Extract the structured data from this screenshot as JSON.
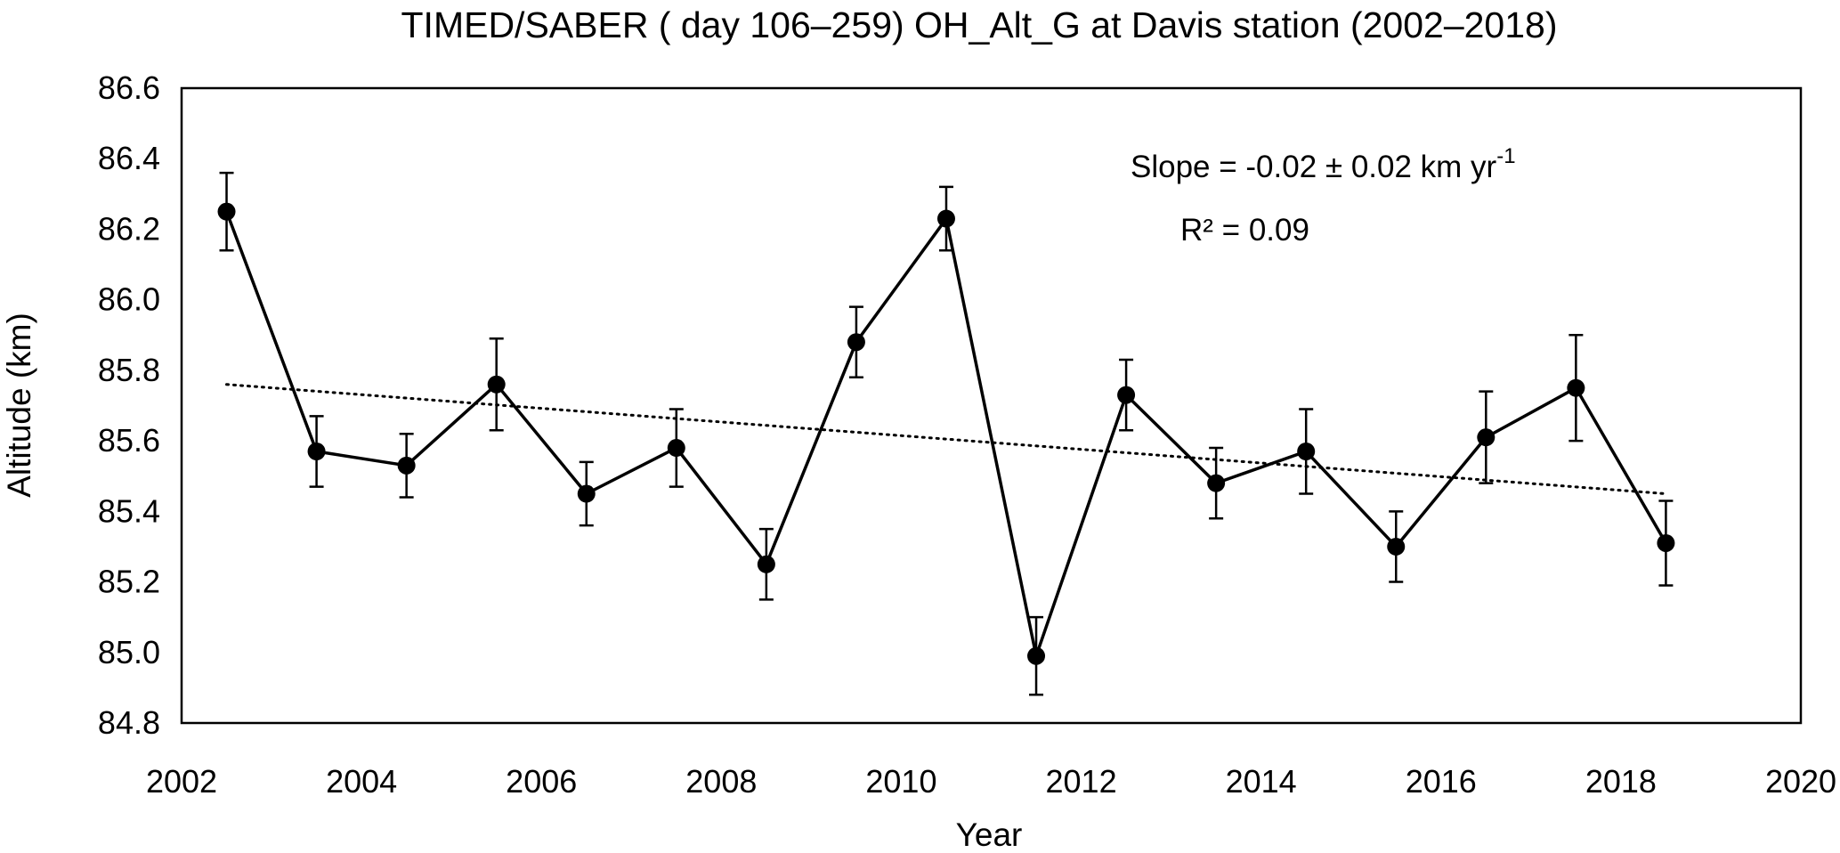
{
  "chart_data": {
    "type": "line",
    "title": "TIMED/SABER ( day 106–259) OH_Alt_G at Davis station  (2002–2018)",
    "xlabel": "Year",
    "ylabel": "Altitude (km)",
    "xlim": [
      2002,
      2020
    ],
    "ylim": [
      84.8,
      86.6
    ],
    "x_ticks": [
      2002,
      2004,
      2006,
      2008,
      2010,
      2012,
      2014,
      2016,
      2018,
      2020
    ],
    "x_tick_labels": [
      "2002",
      "2004",
      "2006",
      "2008",
      "2010",
      "2012",
      "2014",
      "2016",
      "2018",
      "2020"
    ],
    "y_ticks": [
      84.8,
      85.0,
      85.2,
      85.4,
      85.6,
      85.8,
      86.0,
      86.2,
      86.4,
      86.6
    ],
    "y_tick_labels": [
      "84.8",
      "85.0",
      "85.2",
      "85.4",
      "85.6",
      "85.8",
      "86.0",
      "86.2",
      "86.4",
      "86.6"
    ],
    "grid": false,
    "legend": "none",
    "series": [
      {
        "x": [
          2002.5,
          2003.5,
          2004.5,
          2005.5,
          2006.5,
          2007.5,
          2008.5,
          2009.5,
          2010.5,
          2011.5,
          2012.5,
          2013.5,
          2014.5,
          2015.5,
          2016.5,
          2017.5,
          2018.5
        ],
        "values": [
          86.25,
          85.57,
          85.53,
          85.76,
          85.45,
          85.58,
          85.25,
          85.88,
          86.23,
          84.99,
          85.73,
          85.48,
          85.57,
          85.3,
          85.61,
          85.75,
          85.31
        ],
        "error": [
          0.11,
          0.1,
          0.09,
          0.13,
          0.09,
          0.11,
          0.1,
          0.1,
          0.09,
          0.11,
          0.1,
          0.1,
          0.12,
          0.1,
          0.13,
          0.15,
          0.12
        ],
        "color": "#000000",
        "marker": "circle"
      }
    ],
    "trendline": {
      "style": "dotted",
      "x": [
        2002.5,
        2018.5
      ],
      "y": [
        85.76,
        85.45
      ],
      "color": "#000000"
    },
    "annotations": {
      "slope_prefix": "Slope = -0.02 ± 0.02 km  yr",
      "slope_exponent": "-1",
      "r2": "R² = 0.09"
    }
  }
}
